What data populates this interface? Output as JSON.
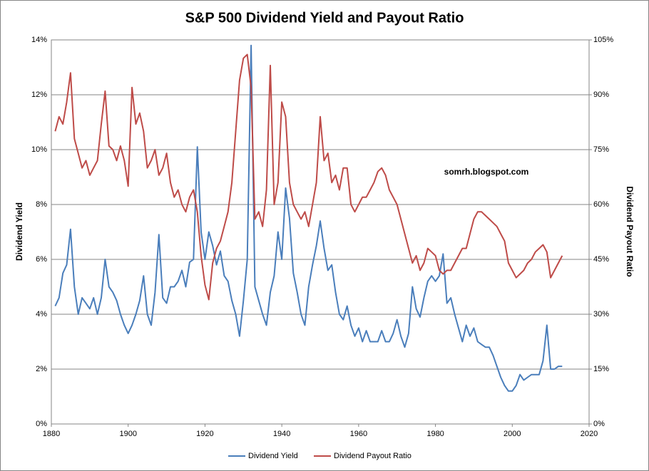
{
  "chart_data": {
    "type": "line",
    "title": "S&P 500 Dividend Yield and Payout Ratio",
    "annotation": "somrh.blogspot.com",
    "y_label": "Dividend Yield",
    "y2_label": "Dividend Payout Ratio",
    "grid": true,
    "legend": "bottom",
    "x": [
      1881,
      1882,
      1883,
      1884,
      1885,
      1886,
      1887,
      1888,
      1889,
      1890,
      1891,
      1892,
      1893,
      1894,
      1895,
      1896,
      1897,
      1898,
      1899,
      1900,
      1901,
      1902,
      1903,
      1904,
      1905,
      1906,
      1907,
      1908,
      1909,
      1910,
      1911,
      1912,
      1913,
      1914,
      1915,
      1916,
      1917,
      1918,
      1919,
      1920,
      1921,
      1922,
      1923,
      1924,
      1925,
      1926,
      1927,
      1928,
      1929,
      1930,
      1931,
      1932,
      1933,
      1934,
      1935,
      1936,
      1937,
      1938,
      1939,
      1940,
      1941,
      1942,
      1943,
      1944,
      1945,
      1946,
      1947,
      1948,
      1949,
      1950,
      1951,
      1952,
      1953,
      1954,
      1955,
      1956,
      1957,
      1958,
      1959,
      1960,
      1961,
      1962,
      1963,
      1964,
      1965,
      1966,
      1967,
      1968,
      1969,
      1970,
      1971,
      1972,
      1973,
      1974,
      1975,
      1976,
      1977,
      1978,
      1979,
      1980,
      1981,
      1982,
      1983,
      1984,
      1985,
      1986,
      1987,
      1988,
      1989,
      1990,
      1991,
      1992,
      1993,
      1994,
      1995,
      1996,
      1997,
      1998,
      1999,
      2000,
      2001,
      2002,
      2003,
      2004,
      2005,
      2006,
      2007,
      2008,
      2009,
      2010,
      2011,
      2012,
      2013
    ],
    "series": [
      {
        "name": "Dividend Yield",
        "color": "#4a7ebb",
        "values": [
          4.3,
          4.6,
          5.5,
          5.8,
          7.1,
          5.0,
          4.0,
          4.6,
          4.4,
          4.2,
          4.6,
          4.0,
          4.6,
          6.0,
          5.0,
          4.8,
          4.5,
          4.0,
          3.6,
          3.3,
          3.6,
          4.0,
          4.5,
          5.4,
          4.0,
          3.6,
          4.8,
          6.9,
          4.6,
          4.4,
          5.0,
          5.0,
          5.2,
          5.6,
          5.0,
          5.9,
          6.0,
          10.1,
          7.0,
          6.0,
          7.0,
          6.5,
          5.8,
          6.3,
          5.4,
          5.2,
          4.5,
          4.0,
          3.2,
          4.5,
          6.0,
          13.8,
          5.0,
          4.5,
          4.0,
          3.6,
          4.8,
          5.4,
          7.0,
          6.0,
          8.6,
          7.5,
          5.5,
          4.8,
          4.0,
          3.6,
          5.0,
          5.8,
          6.5,
          7.4,
          6.4,
          5.6,
          5.8,
          4.8,
          4.0,
          3.8,
          4.3,
          3.6,
          3.2,
          3.5,
          3.0,
          3.4,
          3.0,
          3.0,
          3.0,
          3.4,
          3.0,
          3.0,
          3.3,
          3.8,
          3.2,
          2.8,
          3.3,
          5.0,
          4.2,
          3.9,
          4.6,
          5.2,
          5.4,
          5.2,
          5.4,
          6.2,
          4.4,
          4.6,
          4.0,
          3.5,
          3.0,
          3.6,
          3.2,
          3.5,
          3.0,
          2.9,
          2.8,
          2.8,
          2.5,
          2.1,
          1.7,
          1.4,
          1.2,
          1.2,
          1.4,
          1.8,
          1.6,
          1.7,
          1.8,
          1.8,
          1.8,
          2.3,
          3.6,
          2.0,
          2.0,
          2.1,
          2.1
        ]
      },
      {
        "name": "Dividend Payout Ratio",
        "color": "#be4b48",
        "axis": "y2",
        "values": [
          80,
          84,
          82,
          88,
          96,
          78,
          74,
          70,
          72,
          68,
          70,
          72,
          82,
          91,
          76,
          75,
          72,
          76,
          72,
          65,
          92,
          82,
          85,
          80,
          70,
          72,
          75,
          68,
          70,
          74,
          66,
          62,
          64,
          60,
          58,
          62,
          64,
          58,
          46,
          38,
          34,
          44,
          48,
          50,
          54,
          58,
          66,
          80,
          94,
          100,
          101,
          92,
          56,
          58,
          54,
          64,
          98,
          60,
          66,
          88,
          84,
          66,
          60,
          58,
          56,
          58,
          54,
          60,
          66,
          84,
          72,
          74,
          66,
          68,
          64,
          70,
          70,
          60,
          58,
          60,
          62,
          62,
          64,
          66,
          69,
          70,
          68,
          64,
          62,
          60,
          56,
          52,
          48,
          44,
          46,
          42,
          44,
          48,
          47,
          46,
          42,
          41,
          42,
          42,
          44,
          46,
          48,
          48,
          52,
          56,
          58,
          58,
          57,
          56,
          55,
          54,
          52,
          50,
          44,
          42,
          40,
          41,
          42,
          44,
          45,
          47,
          48,
          49,
          47,
          40,
          42,
          44,
          46
        ]
      }
    ],
    "xlim": [
      1880,
      2020
    ],
    "xticks": [
      1880,
      1900,
      1920,
      1940,
      1960,
      1980,
      2000,
      2020
    ],
    "ylim": [
      0,
      14
    ],
    "yticks": [
      {
        "value": 0,
        "label": "0%"
      },
      {
        "value": 2,
        "label": "2%"
      },
      {
        "value": 4,
        "label": "4%"
      },
      {
        "value": 6,
        "label": "6%"
      },
      {
        "value": 8,
        "label": "8%"
      },
      {
        "value": 10,
        "label": "10%"
      },
      {
        "value": 12,
        "label": "12%"
      },
      {
        "value": 14,
        "label": "14%"
      }
    ],
    "y2lim": [
      0,
      105
    ],
    "y2ticks": [
      {
        "value": 0,
        "label": "0%"
      },
      {
        "value": 15,
        "label": "15%"
      },
      {
        "value": 30,
        "label": "30%"
      },
      {
        "value": 45,
        "label": "45%"
      },
      {
        "value": 60,
        "label": "60%"
      },
      {
        "value": 75,
        "label": "75%"
      },
      {
        "value": 90,
        "label": "90%"
      },
      {
        "value": 105,
        "label": "105%"
      }
    ]
  }
}
